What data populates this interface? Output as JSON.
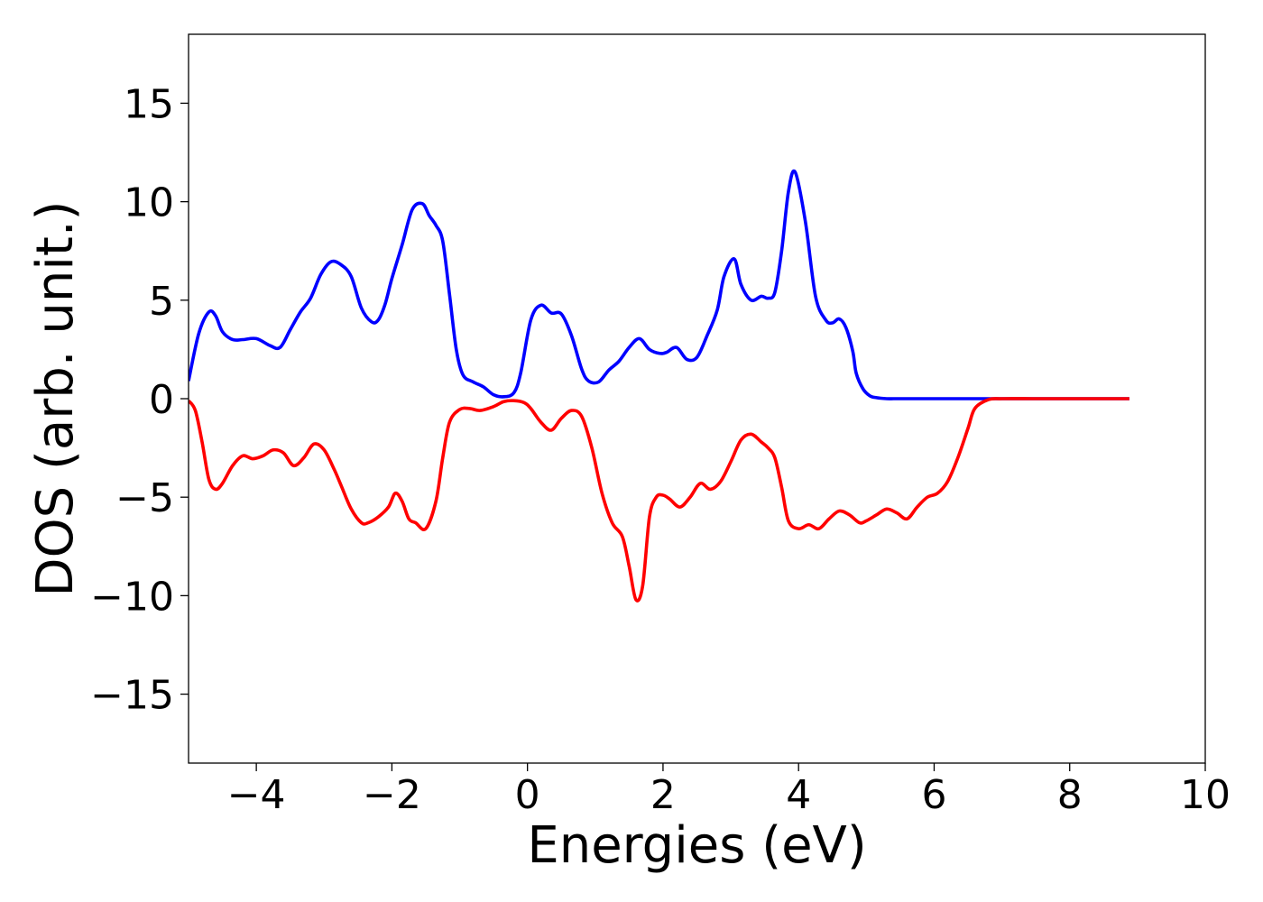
{
  "chart_data": {
    "type": "line",
    "xlabel": "Energies (eV)",
    "ylabel": "DOS (arb. unit.)",
    "xlim": [
      -5,
      10
    ],
    "ylim": [
      -18.5,
      18.5
    ],
    "xticks": [
      -4,
      -2,
      0,
      2,
      4,
      6,
      8,
      10
    ],
    "yticks": [
      -15,
      -10,
      -5,
      0,
      5,
      10,
      15
    ],
    "grid": false,
    "legend": "none",
    "series": [
      {
        "color": "#0000ff",
        "x": [
          -5.0,
          -4.85,
          -4.7,
          -4.6,
          -4.5,
          -4.35,
          -4.2,
          -4.0,
          -3.8,
          -3.65,
          -3.5,
          -3.35,
          -3.2,
          -3.05,
          -2.9,
          -2.75,
          -2.6,
          -2.45,
          -2.3,
          -2.2,
          -2.1,
          -2.0,
          -1.85,
          -1.7,
          -1.55,
          -1.45,
          -1.35,
          -1.25,
          -1.15,
          -1.05,
          -0.95,
          -0.8,
          -0.65,
          -0.5,
          -0.35,
          -0.2,
          -0.1,
          0.05,
          0.2,
          0.35,
          0.5,
          0.65,
          0.8,
          0.9,
          1.05,
          1.2,
          1.35,
          1.5,
          1.65,
          1.8,
          1.95,
          2.05,
          2.2,
          2.35,
          2.5,
          2.65,
          2.8,
          2.9,
          3.05,
          3.15,
          3.3,
          3.45,
          3.55,
          3.65,
          3.75,
          3.85,
          3.95,
          4.1,
          4.25,
          4.4,
          4.5,
          4.6,
          4.7,
          4.8,
          4.85,
          4.95,
          5.05,
          5.15,
          5.3,
          5.4,
          5.5,
          5.6,
          5.7,
          5.85,
          6.0,
          6.15,
          6.3,
          6.5,
          6.7,
          7.0,
          7.5,
          8.0,
          8.5,
          8.88
        ],
        "y": [
          0.9,
          3.3,
          4.4,
          4.2,
          3.4,
          3.0,
          3.0,
          3.05,
          2.7,
          2.6,
          3.5,
          4.4,
          5.1,
          6.3,
          6.95,
          6.8,
          6.2,
          4.6,
          3.9,
          4.0,
          4.8,
          6.1,
          7.8,
          9.6,
          9.9,
          9.3,
          8.8,
          8.0,
          5.3,
          2.5,
          1.2,
          0.85,
          0.6,
          0.2,
          0.1,
          0.3,
          1.3,
          4.0,
          4.75,
          4.35,
          4.3,
          3.2,
          1.5,
          0.9,
          0.85,
          1.45,
          1.9,
          2.6,
          3.05,
          2.5,
          2.3,
          2.35,
          2.6,
          2.0,
          2.1,
          3.2,
          4.5,
          6.2,
          7.1,
          5.8,
          5.0,
          5.2,
          5.1,
          5.4,
          7.5,
          10.5,
          11.5,
          9.0,
          5.2,
          4.0,
          3.85,
          4.05,
          3.6,
          2.4,
          1.3,
          0.5,
          0.15,
          0.05,
          0.0,
          0.0,
          0.0,
          0.0,
          0.0,
          0.0,
          0.0,
          0.0,
          0.0,
          0.0,
          0.0,
          0.0,
          0.0,
          0.0,
          0.0,
          0.0
        ]
      },
      {
        "color": "#ff0000",
        "x": [
          -5.0,
          -4.9,
          -4.8,
          -4.7,
          -4.6,
          -4.5,
          -4.35,
          -4.2,
          -4.05,
          -3.9,
          -3.75,
          -3.6,
          -3.45,
          -3.3,
          -3.15,
          -3.0,
          -2.85,
          -2.75,
          -2.6,
          -2.45,
          -2.35,
          -2.2,
          -2.05,
          -1.95,
          -1.85,
          -1.75,
          -1.65,
          -1.5,
          -1.35,
          -1.25,
          -1.15,
          -1.0,
          -0.85,
          -0.7,
          -0.5,
          -0.35,
          -0.2,
          -0.05,
          0.05,
          0.2,
          0.35,
          0.5,
          0.65,
          0.8,
          0.95,
          1.1,
          1.25,
          1.4,
          1.5,
          1.6,
          1.7,
          1.8,
          1.9,
          2.0,
          2.1,
          2.25,
          2.4,
          2.55,
          2.7,
          2.85,
          3.0,
          3.15,
          3.3,
          3.45,
          3.55,
          3.65,
          3.75,
          3.85,
          4.0,
          4.15,
          4.3,
          4.45,
          4.6,
          4.75,
          4.9,
          5.0,
          5.15,
          5.3,
          5.45,
          5.6,
          5.75,
          5.9,
          6.05,
          6.2,
          6.35,
          6.5,
          6.6,
          6.8,
          7.0,
          7.5,
          8.0,
          8.5,
          8.88
        ],
        "y": [
          -0.1,
          -0.6,
          -2.2,
          -4.1,
          -4.6,
          -4.3,
          -3.4,
          -2.9,
          -3.05,
          -2.9,
          -2.6,
          -2.75,
          -3.4,
          -3.0,
          -2.3,
          -2.6,
          -3.6,
          -4.4,
          -5.6,
          -6.3,
          -6.3,
          -6.0,
          -5.5,
          -4.8,
          -5.2,
          -6.1,
          -6.3,
          -6.6,
          -5.2,
          -3.0,
          -1.2,
          -0.55,
          -0.5,
          -0.6,
          -0.4,
          -0.15,
          -0.1,
          -0.2,
          -0.5,
          -1.2,
          -1.6,
          -1.0,
          -0.6,
          -0.9,
          -2.5,
          -4.8,
          -6.3,
          -7.0,
          -8.5,
          -10.2,
          -9.5,
          -6.0,
          -5.0,
          -4.9,
          -5.1,
          -5.5,
          -5.0,
          -4.3,
          -4.6,
          -4.2,
          -3.2,
          -2.1,
          -1.8,
          -2.2,
          -2.5,
          -3.0,
          -4.5,
          -6.2,
          -6.6,
          -6.4,
          -6.6,
          -6.1,
          -5.7,
          -5.9,
          -6.3,
          -6.2,
          -5.9,
          -5.6,
          -5.8,
          -6.1,
          -5.5,
          -5.0,
          -4.8,
          -4.2,
          -3.0,
          -1.5,
          -0.5,
          -0.05,
          0.0,
          0.0,
          0.0,
          0.0,
          0.0
        ]
      }
    ]
  }
}
